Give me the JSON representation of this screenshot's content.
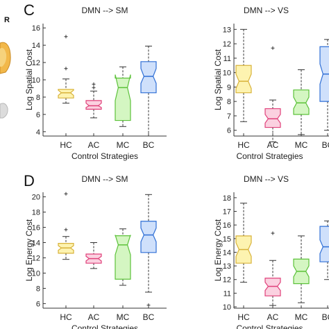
{
  "page": {
    "panel_letters": [
      "C",
      "D"
    ],
    "side_letter": "R"
  },
  "colors": {
    "HC": {
      "stroke": "#d8b23a",
      "fill": "#fdf3b0"
    },
    "AC": {
      "stroke": "#e0407a",
      "fill": "#fbd1e0"
    },
    "MC": {
      "stroke": "#5cc23a",
      "fill": "#d4f6c2"
    },
    "BC": {
      "stroke": "#2f6fd6",
      "fill": "#cfe0fb"
    },
    "outlier": "#333333",
    "whisker": "#333333"
  },
  "chart_data": [
    {
      "id": "C-left",
      "type": "box",
      "title": "DMN --> SM",
      "xlabel": "Control Strategies",
      "ylabel": "Log Spatial Cost",
      "categories": [
        "HC",
        "AC",
        "MC",
        "BC"
      ],
      "ylim": [
        3.5,
        16.5
      ],
      "yticks": [
        4,
        6,
        8,
        10,
        12,
        14,
        16
      ],
      "boxes": [
        {
          "cat": "HC",
          "wlo": 7.3,
          "q1": 7.9,
          "med": 8.5,
          "q3": 8.9,
          "whi": 10.1,
          "notch": [
            8.2,
            8.8
          ],
          "outliers": [
            11.3,
            15.0
          ]
        },
        {
          "cat": "AC",
          "wlo": 5.6,
          "q1": 6.6,
          "med": 7.0,
          "q3": 7.6,
          "whi": 8.7,
          "notch": [
            6.8,
            7.3
          ],
          "outliers": [
            9.5,
            9.1
          ]
        },
        {
          "cat": "MC",
          "wlo": 4.6,
          "q1": 5.3,
          "med": 9.1,
          "q3": 10.2,
          "whi": 11.5,
          "notch": [
            7.6,
            10.6
          ],
          "outliers": []
        },
        {
          "cat": "BC",
          "wlo": 3.5,
          "q1": 8.5,
          "med": 10.4,
          "q3": 12.1,
          "whi": 13.9,
          "notch": [
            9.6,
            11.3
          ],
          "outliers": []
        }
      ]
    },
    {
      "id": "C-right",
      "type": "box",
      "title": "DMN --> VS",
      "xlabel": "Control Strategies",
      "ylabel": "Log Spatial Cost",
      "categories": [
        "HC",
        "AC",
        "MC",
        "BC"
      ],
      "ylim": [
        5.6,
        13.4
      ],
      "yticks": [
        6,
        7,
        8,
        9,
        10,
        11,
        12,
        13
      ],
      "boxes": [
        {
          "cat": "HC",
          "wlo": 6.6,
          "q1": 8.6,
          "med": 9.4,
          "q3": 10.5,
          "whi": 13.0,
          "notch": [
            8.9,
            9.9
          ],
          "outliers": []
        },
        {
          "cat": "AC",
          "wlo": 5.2,
          "q1": 6.2,
          "med": 6.8,
          "q3": 7.5,
          "whi": 8.1,
          "notch": [
            6.5,
            7.1
          ],
          "outliers": [
            11.7
          ]
        },
        {
          "cat": "MC",
          "wlo": 5.7,
          "q1": 7.1,
          "med": 7.9,
          "q3": 8.8,
          "whi": 10.2,
          "notch": [
            7.5,
            8.3
          ],
          "outliers": []
        },
        {
          "cat": "BC",
          "wlo": 6.0,
          "q1": 8.0,
          "med": 9.9,
          "q3": 11.8,
          "whi": 12.3,
          "notch": [
            9.2,
            10.6
          ],
          "outliers": []
        }
      ]
    },
    {
      "id": "D-left",
      "type": "box",
      "title": "DMN --> SM",
      "xlabel": "Control Strategies",
      "ylabel": "Log Energy Cost",
      "categories": [
        "HC",
        "AC",
        "MC",
        "BC"
      ],
      "ylim": [
        5.4,
        20.6
      ],
      "yticks": [
        6,
        8,
        10,
        12,
        14,
        16,
        18,
        20
      ],
      "boxes": [
        {
          "cat": "HC",
          "wlo": 11.8,
          "q1": 12.6,
          "med": 13.3,
          "q3": 13.9,
          "whi": 14.8,
          "notch": [
            13.0,
            13.6
          ],
          "outliers": [
            15.7,
            20.4
          ]
        },
        {
          "cat": "AC",
          "wlo": 10.6,
          "q1": 11.3,
          "med": 11.9,
          "q3": 12.5,
          "whi": 14.0,
          "notch": [
            11.6,
            12.2
          ],
          "outliers": []
        },
        {
          "cat": "MC",
          "wlo": 8.4,
          "q1": 9.2,
          "med": 13.7,
          "q3": 14.9,
          "whi": 15.8,
          "notch": [
            12.4,
            15.0
          ],
          "outliers": []
        },
        {
          "cat": "BC",
          "wlo": 7.5,
          "q1": 12.7,
          "med": 15.0,
          "q3": 16.8,
          "whi": 20.3,
          "notch": [
            14.1,
            15.9
          ],
          "outliers": [
            5.8
          ]
        }
      ]
    },
    {
      "id": "D-right",
      "type": "box",
      "title": "DMN --> VS",
      "xlabel": "Control Strategies",
      "ylabel": "Log Energy Cost",
      "categories": [
        "HC",
        "AC",
        "MC",
        "BC"
      ],
      "ylim": [
        9.9,
        18.4
      ],
      "yticks": [
        10,
        11,
        12,
        13,
        14,
        15,
        16,
        17,
        18
      ],
      "boxes": [
        {
          "cat": "HC",
          "wlo": 11.8,
          "q1": 13.2,
          "med": 14.2,
          "q3": 15.2,
          "whi": 17.6,
          "notch": [
            13.7,
            14.7
          ],
          "outliers": []
        },
        {
          "cat": "AC",
          "wlo": 10.1,
          "q1": 10.8,
          "med": 11.5,
          "q3": 12.1,
          "whi": 13.4,
          "notch": [
            11.2,
            11.8
          ],
          "outliers": [
            15.4
          ]
        },
        {
          "cat": "MC",
          "wlo": 10.3,
          "q1": 11.7,
          "med": 12.6,
          "q3": 13.5,
          "whi": 15.2,
          "notch": [
            12.2,
            13.0
          ],
          "outliers": []
        },
        {
          "cat": "BC",
          "wlo": 12.0,
          "q1": 13.3,
          "med": 14.4,
          "q3": 15.9,
          "whi": 16.3,
          "notch": [
            13.9,
            14.9
          ],
          "outliers": []
        }
      ]
    }
  ]
}
